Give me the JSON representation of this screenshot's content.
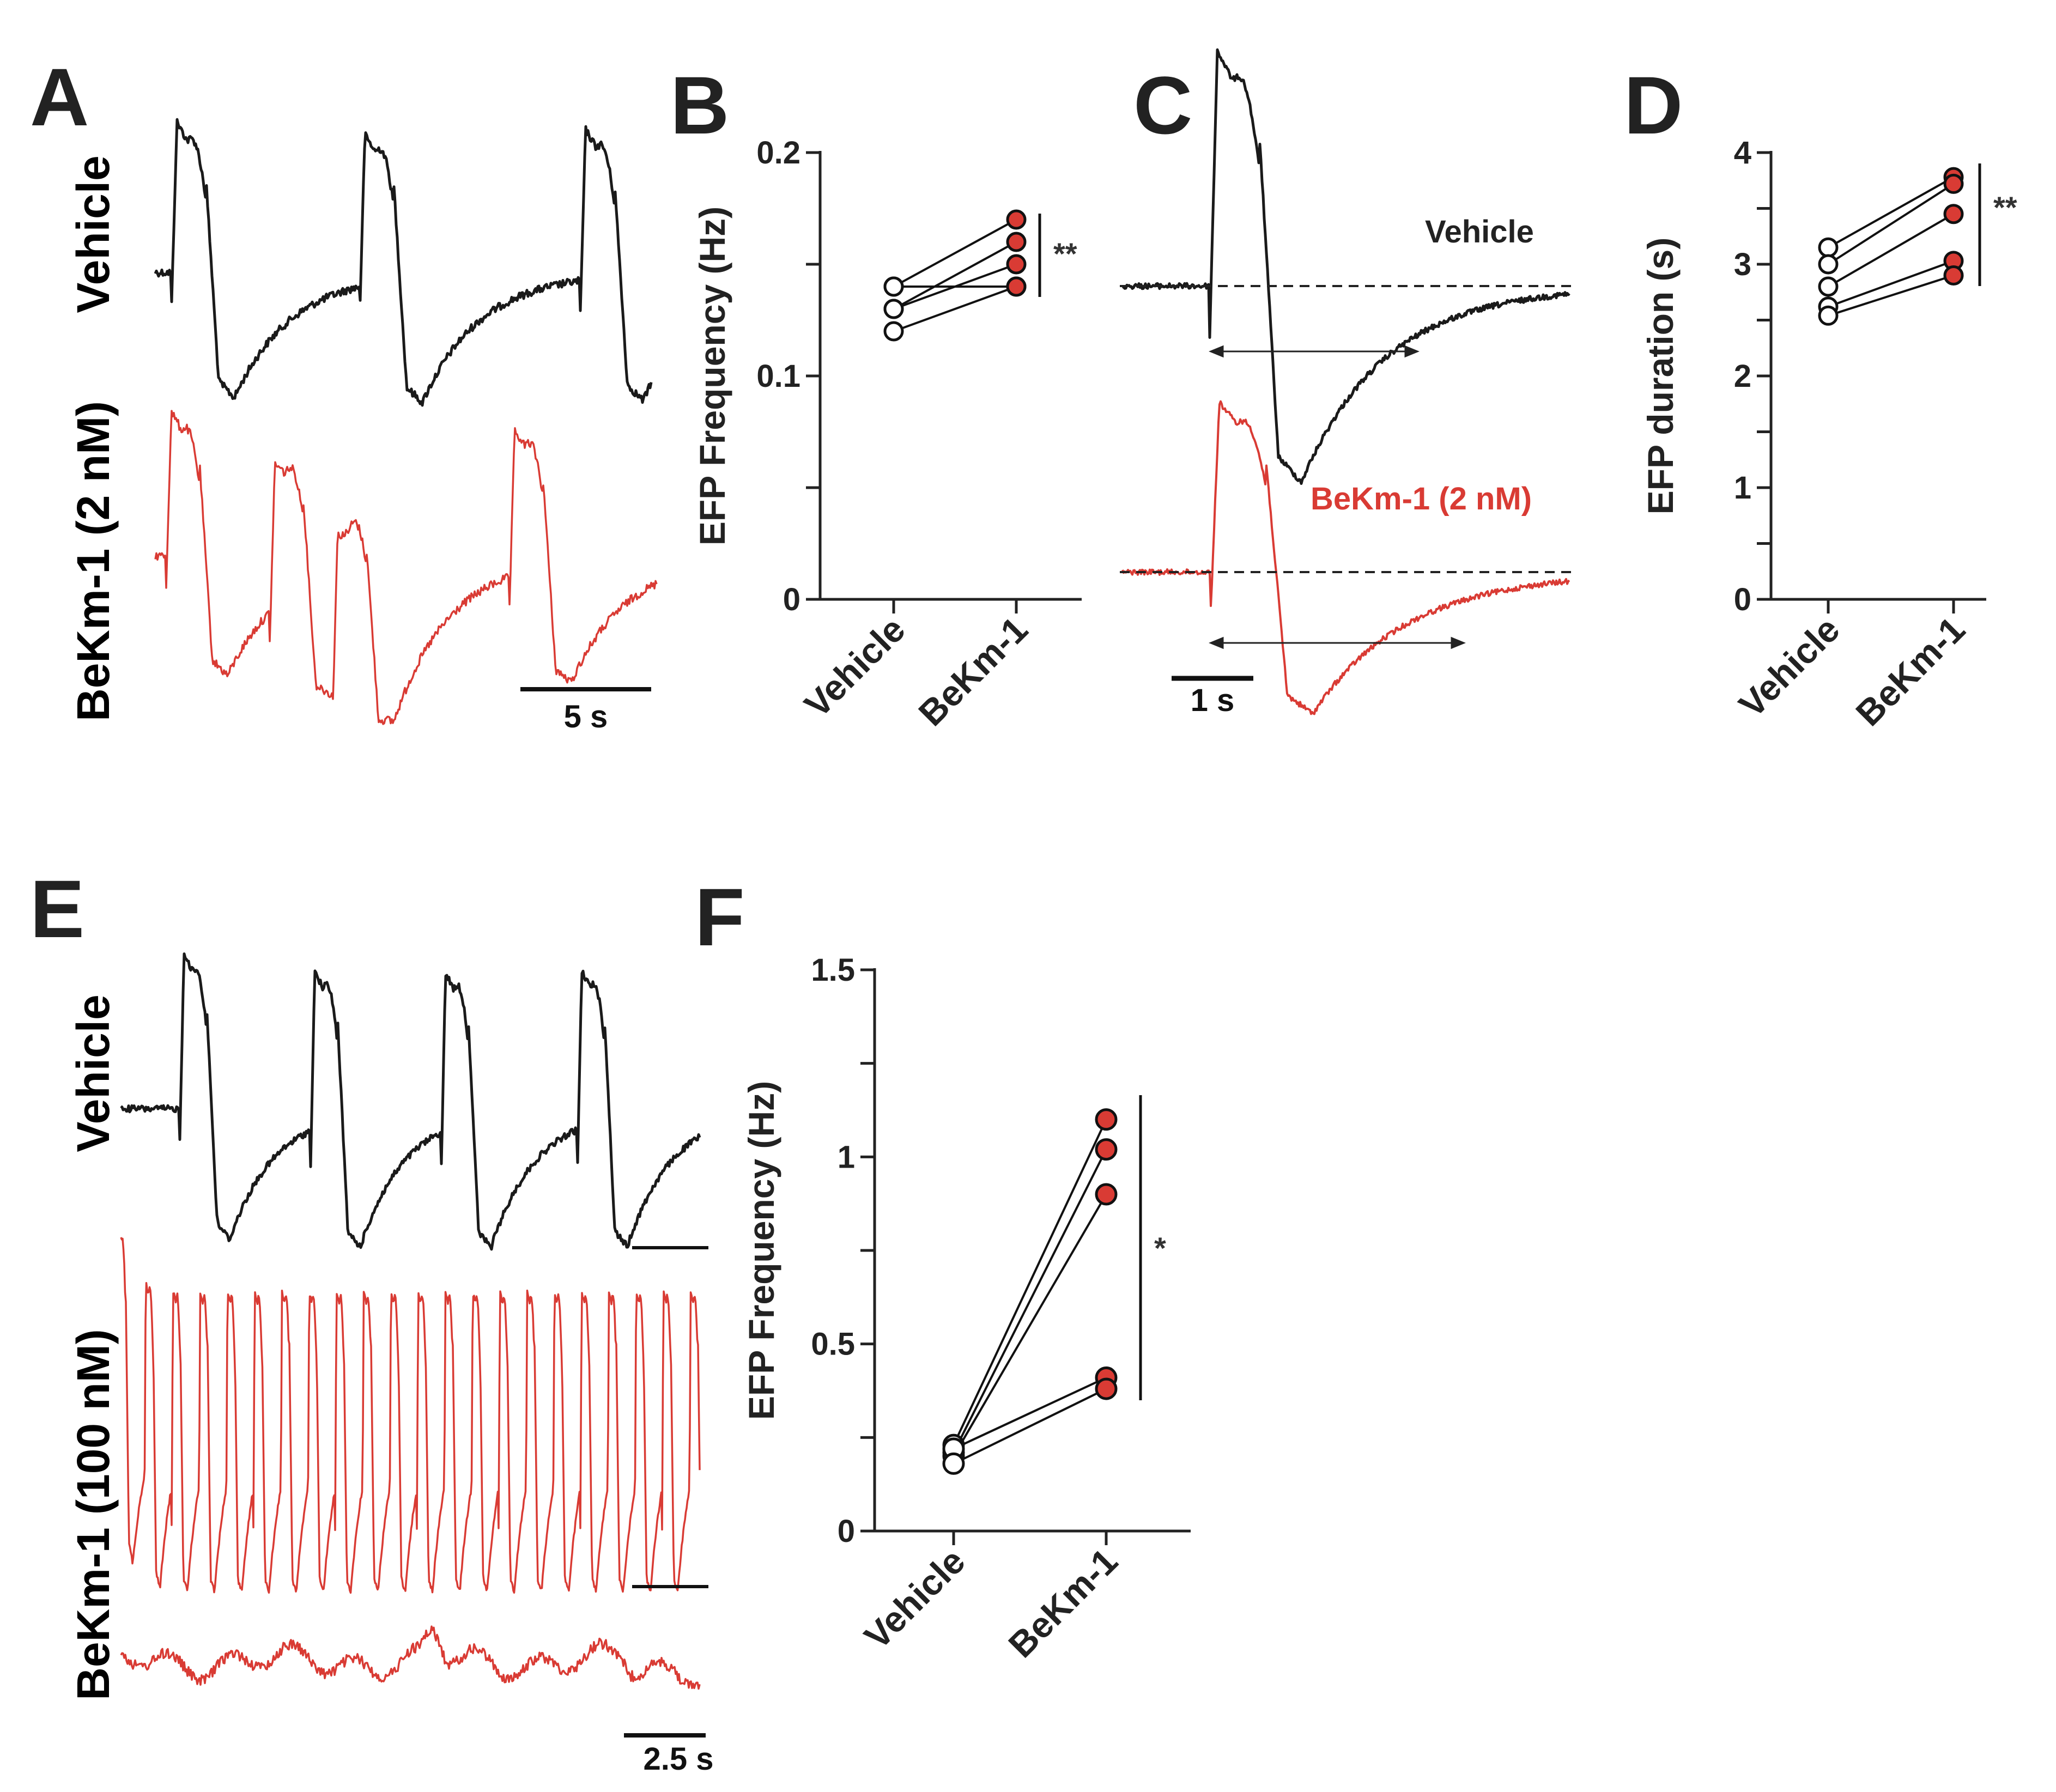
{
  "colors": {
    "vehicle": "#1a1a1a",
    "bekm": "#d93b34",
    "axis": "#222222"
  },
  "panels": {
    "A": {
      "letter": "A",
      "vehicle_label": "Vehicle",
      "treat_label": "BeKm-1 (2 nM)",
      "scalebar": "5 s"
    },
    "C": {
      "letter": "C",
      "vehicle_label": "Vehicle",
      "treat_label": "BeKm-1 (2 nM)",
      "scalebar": "1 s"
    },
    "E": {
      "letter": "E",
      "vehicle_label": "Vehicle",
      "treat_label": "BeKm-1 (100 nM)",
      "scalebar": "2.5 s"
    }
  },
  "chart_data": [
    {
      "panel": "B",
      "type": "scatter",
      "title": "",
      "xlabel": "",
      "ylabel": "EFP Frequency (Hz)",
      "categories": [
        "Vehicle",
        "BeKm-1"
      ],
      "ylim": [
        0,
        0.2
      ],
      "yticks": [
        0,
        0.1,
        0.2
      ],
      "ytick_labels": [
        "0",
        "0.1",
        "0.2"
      ],
      "paired_values": [
        [
          0.14,
          0.17
        ],
        [
          0.13,
          0.16
        ],
        [
          0.13,
          0.15
        ],
        [
          0.12,
          0.14
        ],
        [
          0.14,
          0.14
        ]
      ],
      "significance": "**"
    },
    {
      "panel": "D",
      "type": "scatter",
      "title": "",
      "xlabel": "",
      "ylabel": "EFP duration (s)",
      "categories": [
        "Vehicle",
        "BeKm-1"
      ],
      "ylim": [
        0,
        4
      ],
      "yticks": [
        0,
        1,
        2,
        3,
        4
      ],
      "ytick_labels": [
        "0",
        "1",
        "2",
        "3",
        "4"
      ],
      "paired_values": [
        [
          3.15,
          3.78
        ],
        [
          3.0,
          3.72
        ],
        [
          2.8,
          3.45
        ],
        [
          2.62,
          3.03
        ],
        [
          2.54,
          2.9
        ]
      ],
      "significance": "**"
    },
    {
      "panel": "F",
      "type": "scatter",
      "title": "",
      "xlabel": "",
      "ylabel": "EFP Frequency (Hz)",
      "categories": [
        "Vehicle",
        "BeKm-1"
      ],
      "ylim": [
        0,
        1.5
      ],
      "yticks": [
        0,
        0.5,
        1,
        1.5
      ],
      "ytick_labels": [
        "0",
        "0.5",
        "1",
        "1.5"
      ],
      "paired_values": [
        [
          0.23,
          1.1
        ],
        [
          0.21,
          1.02
        ],
        [
          0.2,
          0.9
        ],
        [
          0.22,
          0.41
        ],
        [
          0.18,
          0.38
        ]
      ],
      "significance": "*"
    }
  ]
}
